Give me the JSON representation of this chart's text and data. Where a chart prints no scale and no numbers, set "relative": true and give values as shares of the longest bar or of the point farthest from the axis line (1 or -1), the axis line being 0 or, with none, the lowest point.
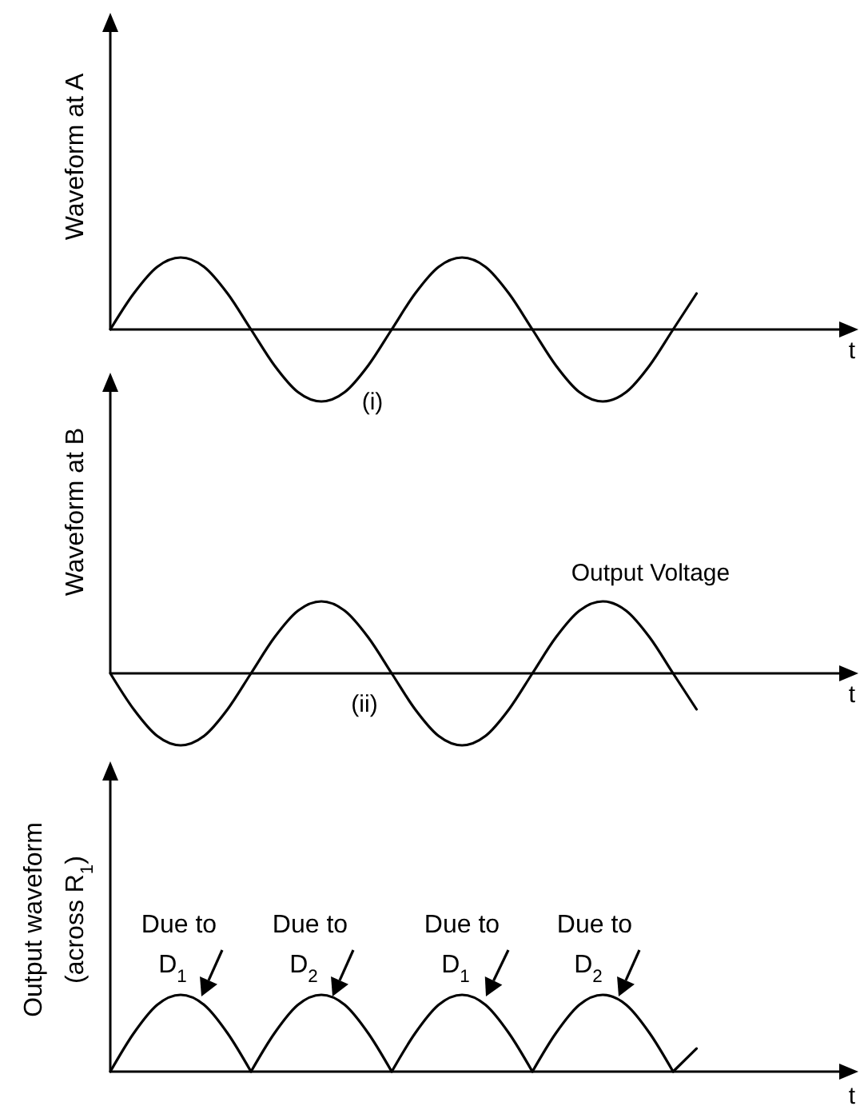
{
  "chart_data": [
    {
      "type": "line",
      "relative": true,
      "ylabel": "Waveform at A",
      "xlabel": "t",
      "categories": [
        null,
        null,
        null,
        null,
        null,
        null,
        null,
        null,
        null,
        null,
        null,
        null,
        null,
        null,
        null,
        null,
        null,
        null,
        null,
        null,
        null,
        null,
        null,
        null,
        null,
        null
      ],
      "series": [
        {
          "color": "#000000",
          "values": [
            0,
            0.5,
            0.87,
            1,
            0.87,
            0.5,
            0,
            -0.5,
            -0.87,
            -1,
            -0.87,
            -0.5,
            0,
            0.5,
            0.87,
            1,
            0.87,
            0.5,
            0,
            -0.5,
            -0.87,
            -1,
            -0.87,
            -0.5,
            0,
            0.5
          ]
        }
      ],
      "annotations": [
        "(i)"
      ]
    },
    {
      "type": "line",
      "relative": true,
      "ylabel": "Waveform at B",
      "xlabel": "t",
      "categories": [
        null,
        null,
        null,
        null,
        null,
        null,
        null,
        null,
        null,
        null,
        null,
        null,
        null,
        null,
        null,
        null,
        null,
        null,
        null,
        null,
        null,
        null,
        null,
        null,
        null,
        null
      ],
      "series": [
        {
          "color": "#000000",
          "values": [
            0,
            -0.5,
            -0.87,
            -1,
            -0.87,
            -0.5,
            0,
            0.5,
            0.87,
            1,
            0.87,
            0.5,
            0,
            -0.5,
            -0.87,
            -1,
            -0.87,
            -0.5,
            0,
            0.5,
            0.87,
            1,
            0.87,
            0.5,
            0,
            -0.5
          ]
        }
      ],
      "annotations": [
        "(ii)",
        "Output Voltage"
      ]
    },
    {
      "type": "line",
      "relative": true,
      "ylabel": "Output waveform\n(across R$_{1}$)",
      "xlabel": "t",
      "categories": [
        null,
        null,
        null,
        null,
        null,
        null,
        null,
        null,
        null,
        null,
        null,
        null,
        null,
        null,
        null,
        null,
        null,
        null,
        null,
        null,
        null,
        null,
        null,
        null,
        null,
        null
      ],
      "series": [
        {
          "color": "#000000",
          "values": [
            0,
            0.5,
            0.87,
            1,
            0.87,
            0.5,
            0,
            0.5,
            0.87,
            1,
            0.87,
            0.5,
            0,
            0.5,
            0.87,
            1,
            0.87,
            0.5,
            0,
            0.5,
            0.87,
            1,
            0.87,
            0.5,
            0,
            0.3
          ]
        }
      ],
      "annotations": [
        "Due to\nD$_{1}$",
        "Due to\nD$_{2}$",
        "Due to\nD$_{1}$",
        "Due to\nD$_{2}$"
      ]
    }
  ]
}
